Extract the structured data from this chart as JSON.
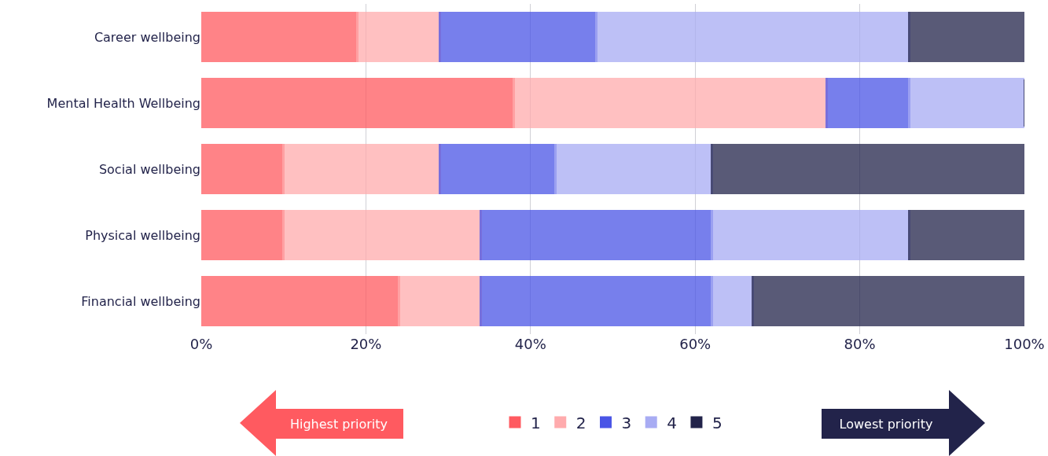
{
  "chart_data": {
    "type": "bar",
    "orientation": "horizontal",
    "stacked": true,
    "categories": [
      "Career wellbeing",
      "Mental Health Wellbeing",
      "Social wellbeing",
      "Physical wellbeing",
      "Financial wellbeing"
    ],
    "series": [
      {
        "name": "1",
        "color": "#ff5a60",
        "values": [
          19,
          38,
          10,
          10,
          24
        ]
      },
      {
        "name": "2",
        "color": "#ffabad",
        "values": [
          10,
          38,
          19,
          24,
          10
        ]
      },
      {
        "name": "3",
        "color": "#4a55e6",
        "values": [
          19,
          10,
          14,
          28,
          28
        ]
      },
      {
        "name": "4",
        "color": "#a8acf3",
        "values": [
          38,
          14,
          19,
          24,
          5
        ]
      },
      {
        "name": "5",
        "color": "#22234a",
        "values": [
          14,
          0,
          38,
          14,
          33
        ]
      }
    ],
    "xlim": [
      0,
      100
    ],
    "xticks": [
      {
        "value": 0,
        "label": "0%"
      },
      {
        "value": 20,
        "label": "20%"
      },
      {
        "value": 40,
        "label": "40%"
      },
      {
        "value": 60,
        "label": "60%"
      },
      {
        "value": 80,
        "label": "80%"
      },
      {
        "value": 100,
        "label": "100%"
      }
    ],
    "grid": "x",
    "legend": "bottom",
    "annotations": [
      "Highest priority",
      "Lowest priority"
    ]
  }
}
